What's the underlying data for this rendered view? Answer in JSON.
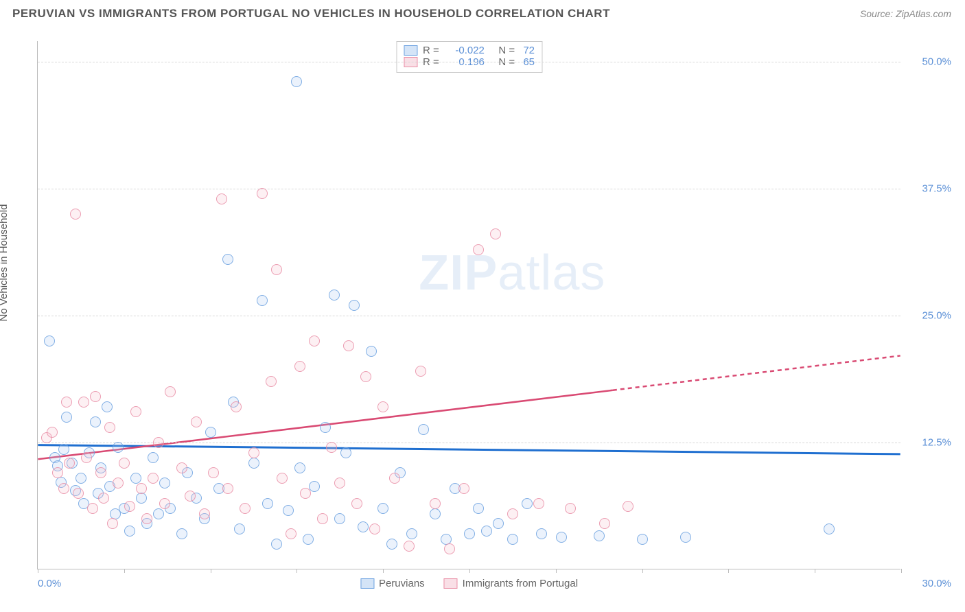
{
  "header": {
    "title": "PERUVIAN VS IMMIGRANTS FROM PORTUGAL NO VEHICLES IN HOUSEHOLD CORRELATION CHART",
    "source_prefix": "Source: ",
    "source_name": "ZipAtlas.com"
  },
  "watermark": {
    "part1": "ZIP",
    "part2": "atlas",
    "color": "#e6eef8"
  },
  "chart": {
    "type": "scatter",
    "ylabel": "No Vehicles in Household",
    "xlim": [
      0,
      30
    ],
    "ylim": [
      0,
      52
    ],
    "x_ticks": [
      0,
      3,
      6,
      9,
      12,
      15,
      18,
      21,
      24,
      27,
      30
    ],
    "x_tick_labels_shown": {
      "0": "0.0%",
      "30": "30.0%"
    },
    "y_gridlines": [
      12.5,
      25.0,
      37.5,
      50.0
    ],
    "y_tick_labels": [
      "12.5%",
      "25.0%",
      "37.5%",
      "50.0%"
    ],
    "background_color": "#ffffff",
    "grid_color": "#d8d8d8",
    "axis_color": "#bbbbbb",
    "tick_label_color": "#5a8fd6",
    "label_color": "#555555",
    "marker_radius": 8,
    "marker_stroke_width": 1.5,
    "marker_fill_opacity": 0.28,
    "series": [
      {
        "name": "Peruvians",
        "color_stroke": "#6aa0e0",
        "color_fill": "#a9c9ef",
        "trend": {
          "y_at_x0": 12.2,
          "y_at_x30": 11.3,
          "line_color": "#1f6fd0",
          "line_width": 3,
          "dash_after_x": null
        },
        "R": "-0.022",
        "N": "72",
        "points": [
          [
            0.4,
            22.5
          ],
          [
            0.6,
            11.0
          ],
          [
            0.7,
            10.2
          ],
          [
            0.8,
            8.6
          ],
          [
            0.9,
            11.8
          ],
          [
            1.0,
            15.0
          ],
          [
            1.2,
            10.5
          ],
          [
            1.3,
            7.8
          ],
          [
            1.5,
            9.0
          ],
          [
            1.6,
            6.5
          ],
          [
            1.8,
            11.5
          ],
          [
            2.0,
            14.5
          ],
          [
            2.1,
            7.5
          ],
          [
            2.2,
            10.0
          ],
          [
            2.4,
            16.0
          ],
          [
            2.5,
            8.2
          ],
          [
            2.7,
            5.5
          ],
          [
            2.8,
            12.0
          ],
          [
            3.0,
            6.0
          ],
          [
            3.2,
            3.8
          ],
          [
            3.4,
            9.0
          ],
          [
            3.6,
            7.0
          ],
          [
            3.8,
            4.5
          ],
          [
            4.0,
            11.0
          ],
          [
            4.2,
            5.5
          ],
          [
            4.4,
            8.5
          ],
          [
            4.6,
            6.0
          ],
          [
            5.0,
            3.5
          ],
          [
            5.2,
            9.5
          ],
          [
            5.5,
            7.0
          ],
          [
            5.8,
            5.0
          ],
          [
            6.0,
            13.5
          ],
          [
            6.3,
            8.0
          ],
          [
            6.6,
            30.5
          ],
          [
            6.8,
            16.5
          ],
          [
            7.0,
            4.0
          ],
          [
            7.5,
            10.5
          ],
          [
            7.8,
            26.5
          ],
          [
            8.0,
            6.5
          ],
          [
            8.3,
            2.5
          ],
          [
            8.7,
            5.8
          ],
          [
            9.0,
            48.0
          ],
          [
            9.1,
            10.0
          ],
          [
            9.4,
            3.0
          ],
          [
            9.6,
            8.2
          ],
          [
            10.0,
            14.0
          ],
          [
            10.3,
            27.0
          ],
          [
            10.5,
            5.0
          ],
          [
            10.7,
            11.5
          ],
          [
            11.0,
            26.0
          ],
          [
            11.3,
            4.2
          ],
          [
            11.6,
            21.5
          ],
          [
            12.0,
            6.0
          ],
          [
            12.3,
            2.5
          ],
          [
            12.6,
            9.5
          ],
          [
            13.0,
            3.5
          ],
          [
            13.4,
            13.8
          ],
          [
            13.8,
            5.5
          ],
          [
            14.2,
            3.0
          ],
          [
            14.5,
            8.0
          ],
          [
            15.0,
            3.5
          ],
          [
            15.3,
            6.0
          ],
          [
            15.6,
            3.8
          ],
          [
            16.0,
            4.5
          ],
          [
            16.5,
            3.0
          ],
          [
            17.0,
            6.5
          ],
          [
            17.5,
            3.5
          ],
          [
            18.2,
            3.2
          ],
          [
            19.5,
            3.3
          ],
          [
            21.0,
            3.0
          ],
          [
            22.5,
            3.2
          ],
          [
            27.5,
            4.0
          ]
        ]
      },
      {
        "name": "Immigrants from Portugal",
        "color_stroke": "#e98da5",
        "color_fill": "#f4bfcd",
        "trend": {
          "y_at_x0": 10.8,
          "y_at_x30": 21.0,
          "line_color": "#d94a73",
          "line_width": 2.5,
          "dash_after_x": 20
        },
        "R": "0.196",
        "N": "65",
        "points": [
          [
            0.3,
            13.0
          ],
          [
            0.5,
            13.5
          ],
          [
            0.7,
            9.5
          ],
          [
            0.9,
            8.0
          ],
          [
            1.0,
            16.5
          ],
          [
            1.1,
            10.5
          ],
          [
            1.3,
            35.0
          ],
          [
            1.4,
            7.5
          ],
          [
            1.6,
            16.5
          ],
          [
            1.7,
            11.0
          ],
          [
            1.9,
            6.0
          ],
          [
            2.0,
            17.0
          ],
          [
            2.2,
            9.5
          ],
          [
            2.3,
            7.0
          ],
          [
            2.5,
            14.0
          ],
          [
            2.6,
            4.5
          ],
          [
            2.8,
            8.5
          ],
          [
            3.0,
            10.5
          ],
          [
            3.2,
            6.2
          ],
          [
            3.4,
            15.5
          ],
          [
            3.6,
            8.0
          ],
          [
            3.8,
            5.0
          ],
          [
            4.0,
            9.0
          ],
          [
            4.2,
            12.5
          ],
          [
            4.4,
            6.5
          ],
          [
            4.6,
            17.5
          ],
          [
            5.0,
            10.0
          ],
          [
            5.3,
            7.2
          ],
          [
            5.5,
            14.5
          ],
          [
            5.8,
            5.5
          ],
          [
            6.1,
            9.5
          ],
          [
            6.4,
            36.5
          ],
          [
            6.6,
            8.0
          ],
          [
            6.9,
            16.0
          ],
          [
            7.2,
            6.0
          ],
          [
            7.5,
            11.5
          ],
          [
            7.8,
            37.0
          ],
          [
            8.1,
            18.5
          ],
          [
            8.3,
            29.5
          ],
          [
            8.5,
            9.0
          ],
          [
            8.8,
            3.5
          ],
          [
            9.1,
            20.0
          ],
          [
            9.3,
            7.5
          ],
          [
            9.6,
            22.5
          ],
          [
            9.9,
            5.0
          ],
          [
            10.2,
            12.0
          ],
          [
            10.5,
            8.5
          ],
          [
            10.8,
            22.0
          ],
          [
            11.1,
            6.5
          ],
          [
            11.4,
            19.0
          ],
          [
            11.7,
            4.0
          ],
          [
            12.0,
            16.0
          ],
          [
            12.4,
            9.0
          ],
          [
            12.9,
            2.3
          ],
          [
            13.3,
            19.5
          ],
          [
            13.8,
            6.5
          ],
          [
            14.3,
            2.0
          ],
          [
            14.8,
            8.0
          ],
          [
            15.3,
            31.5
          ],
          [
            15.9,
            33.0
          ],
          [
            16.5,
            5.5
          ],
          [
            17.4,
            6.5
          ],
          [
            18.5,
            6.0
          ],
          [
            19.7,
            4.5
          ],
          [
            20.5,
            6.2
          ]
        ]
      }
    ]
  },
  "legend_top": {
    "rows": [
      {
        "series_index": 0,
        "r_label": "R =",
        "n_label": "N ="
      },
      {
        "series_index": 1,
        "r_label": "R =",
        "n_label": "N ="
      }
    ]
  }
}
